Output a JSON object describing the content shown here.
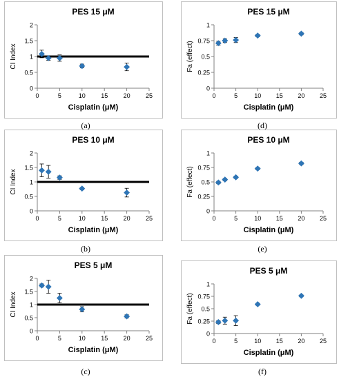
{
  "chart_data": [
    {
      "id": "a",
      "type": "scatter",
      "caption": "(a)",
      "title": "PES 15 μM",
      "xlabel": "Cisplatin (μM)",
      "ylabel": "CI Index",
      "xlim": [
        0,
        25
      ],
      "ylim": [
        0,
        2
      ],
      "xticks": [
        "0",
        "5",
        "10",
        "15",
        "20",
        "25"
      ],
      "yticks": [
        "0",
        "0.5",
        "1",
        "1.5",
        "2"
      ],
      "reference_line": 1,
      "points": [
        {
          "x": 1,
          "y": 1.08,
          "err": 0.12
        },
        {
          "x": 2.5,
          "y": 0.95,
          "err": 0.07
        },
        {
          "x": 5,
          "y": 0.95,
          "err": 0.1
        },
        {
          "x": 10,
          "y": 0.7,
          "err": 0.06
        },
        {
          "x": 20,
          "y": 0.67,
          "err": 0.12
        }
      ],
      "series_color": "#2e75b6"
    },
    {
      "id": "d",
      "type": "scatter",
      "caption": "(d)",
      "title": "PES 15 μM",
      "xlabel": "Cisplatin (μM)",
      "ylabel": "Fa (effect)",
      "xlim": [
        0,
        25
      ],
      "ylim": [
        0,
        1
      ],
      "xticks": [
        "0",
        "5",
        "10",
        "15",
        "20",
        "25"
      ],
      "yticks": [
        "0",
        "0.25",
        "0.5",
        "0.75",
        "1"
      ],
      "points": [
        {
          "x": 1,
          "y": 0.71,
          "err": 0.03
        },
        {
          "x": 2.5,
          "y": 0.75,
          "err": 0.03
        },
        {
          "x": 5,
          "y": 0.76,
          "err": 0.04
        },
        {
          "x": 10,
          "y": 0.83,
          "err": 0.02
        },
        {
          "x": 20,
          "y": 0.86,
          "err": 0.02
        }
      ],
      "series_color": "#2e75b6"
    },
    {
      "id": "b",
      "type": "scatter",
      "caption": "(b)",
      "title": "PES 10 μM",
      "xlabel": "Cisplatin (μM)",
      "ylabel": "CI Index",
      "xlim": [
        0,
        25
      ],
      "ylim": [
        0,
        2
      ],
      "xticks": [
        "0",
        "5",
        "10",
        "15",
        "20",
        "25"
      ],
      "yticks": [
        "0",
        "0.5",
        "1",
        "1.5",
        "2"
      ],
      "reference_line": 1,
      "points": [
        {
          "x": 1,
          "y": 1.4,
          "err": 0.22
        },
        {
          "x": 2.5,
          "y": 1.35,
          "err": 0.22
        },
        {
          "x": 5,
          "y": 1.15,
          "err": 0.06
        },
        {
          "x": 10,
          "y": 0.77,
          "err": 0.04
        },
        {
          "x": 20,
          "y": 0.63,
          "err": 0.15
        }
      ],
      "series_color": "#2e75b6"
    },
    {
      "id": "e",
      "type": "scatter",
      "caption": "(e)",
      "title": "PES 10 μM",
      "xlabel": "Cisplatin (μM)",
      "ylabel": "Fa (effect)",
      "xlim": [
        0,
        25
      ],
      "ylim": [
        0,
        1
      ],
      "xticks": [
        "0",
        "5",
        "10",
        "15",
        "20",
        "25"
      ],
      "yticks": [
        "0",
        "0.25",
        "0.5",
        "0.75",
        "1"
      ],
      "points": [
        {
          "x": 1,
          "y": 0.49,
          "err": 0.02
        },
        {
          "x": 2.5,
          "y": 0.54,
          "err": 0.02
        },
        {
          "x": 5,
          "y": 0.58,
          "err": 0.02
        },
        {
          "x": 10,
          "y": 0.73,
          "err": 0.02
        },
        {
          "x": 20,
          "y": 0.82,
          "err": 0.02
        }
      ],
      "series_color": "#2e75b6"
    },
    {
      "id": "c",
      "type": "scatter",
      "caption": "(c)",
      "title": "PES 5 μM",
      "xlabel": "Cisplatin (μM)",
      "ylabel": "CI Index",
      "xlim": [
        0,
        25
      ],
      "ylim": [
        0,
        2
      ],
      "xticks": [
        "0",
        "5",
        "10",
        "15",
        "20",
        "25"
      ],
      "yticks": [
        "0",
        "0.5",
        "1",
        "1.5",
        "2"
      ],
      "reference_line": 1,
      "points": [
        {
          "x": 1,
          "y": 1.73,
          "err": 0.06
        },
        {
          "x": 2.5,
          "y": 1.68,
          "err": 0.25
        },
        {
          "x": 5,
          "y": 1.25,
          "err": 0.18
        },
        {
          "x": 10,
          "y": 0.82,
          "err": 0.1
        },
        {
          "x": 20,
          "y": 0.55,
          "err": 0.06
        }
      ],
      "series_color": "#2e75b6"
    },
    {
      "id": "f",
      "type": "scatter",
      "caption": "(f)",
      "title": "PES 5 μM",
      "xlabel": "Cisplatin (μM)",
      "ylabel": "Fa (effect)",
      "xlim": [
        0,
        25
      ],
      "ylim": [
        0,
        1
      ],
      "xticks": [
        "0",
        "5",
        "10",
        "15",
        "20",
        "25"
      ],
      "yticks": [
        "0",
        "0.25",
        "0.5",
        "0.75",
        "1"
      ],
      "points": [
        {
          "x": 1,
          "y": 0.23,
          "err": 0.03
        },
        {
          "x": 2.5,
          "y": 0.26,
          "err": 0.07
        },
        {
          "x": 5,
          "y": 0.26,
          "err": 0.1
        },
        {
          "x": 10,
          "y": 0.59,
          "err": 0.02
        },
        {
          "x": 20,
          "y": 0.76,
          "err": 0.02
        }
      ],
      "series_color": "#2e75b6"
    }
  ]
}
